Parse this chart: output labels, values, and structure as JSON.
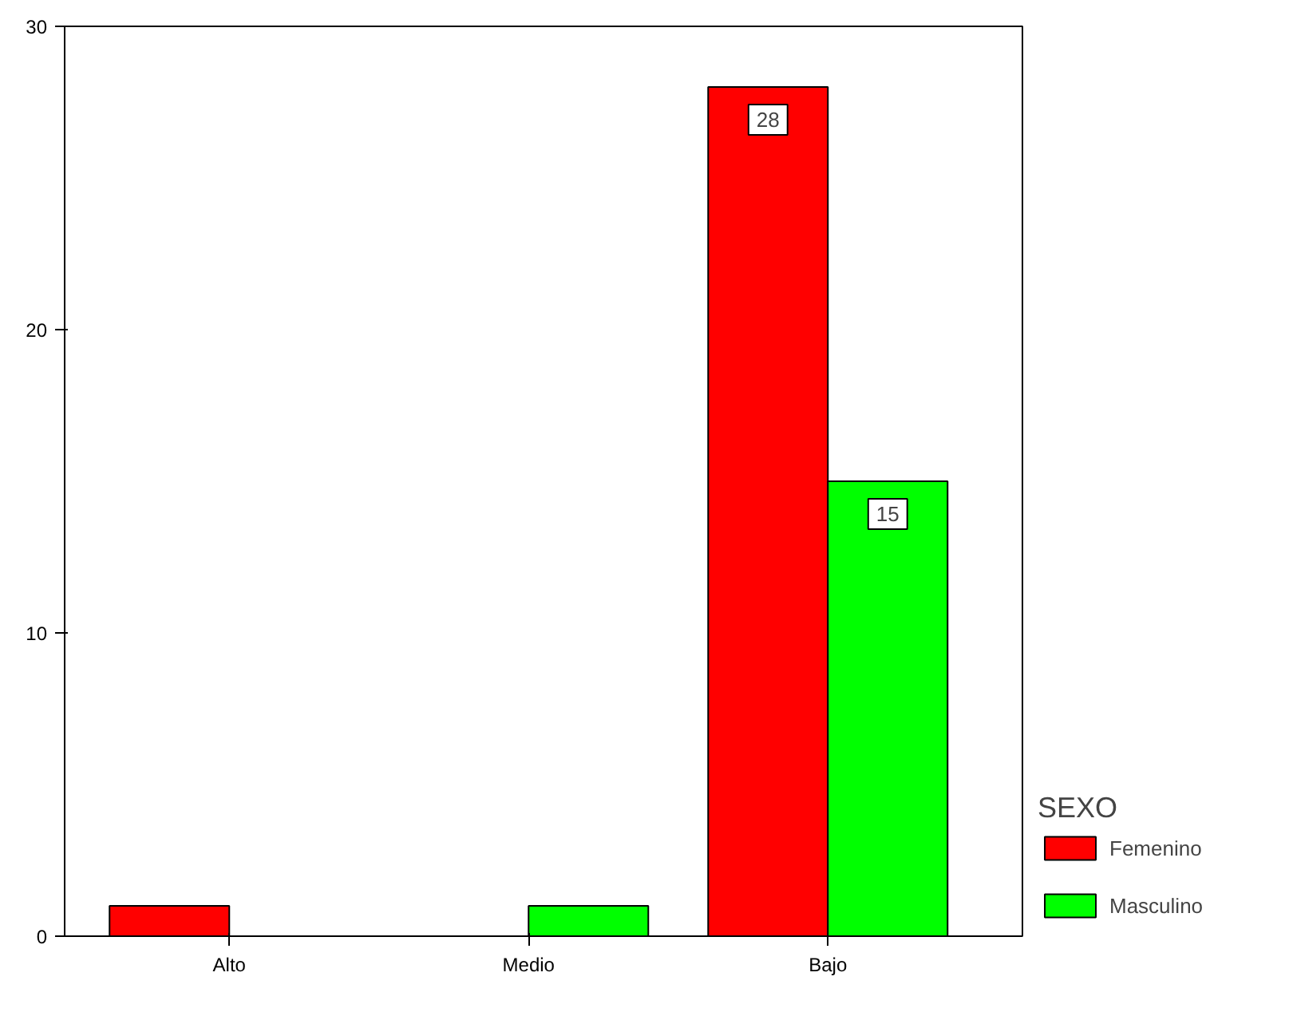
{
  "chart_data": {
    "type": "bar",
    "categories": [
      "Alto",
      "Medio",
      "Bajo"
    ],
    "series": [
      {
        "name": "Femenino",
        "color": "#ff0000",
        "values": [
          1,
          null,
          28
        ],
        "value_labels": [
          null,
          null,
          "28"
        ]
      },
      {
        "name": "Masculino",
        "color": "#00ff00",
        "values": [
          null,
          1,
          15
        ],
        "value_labels": [
          null,
          null,
          "15"
        ]
      }
    ],
    "legend_title": "SEXO",
    "legend": "right",
    "ylim": [
      0,
      30
    ],
    "yticks": [
      0,
      10,
      20,
      30
    ],
    "grid": false
  }
}
